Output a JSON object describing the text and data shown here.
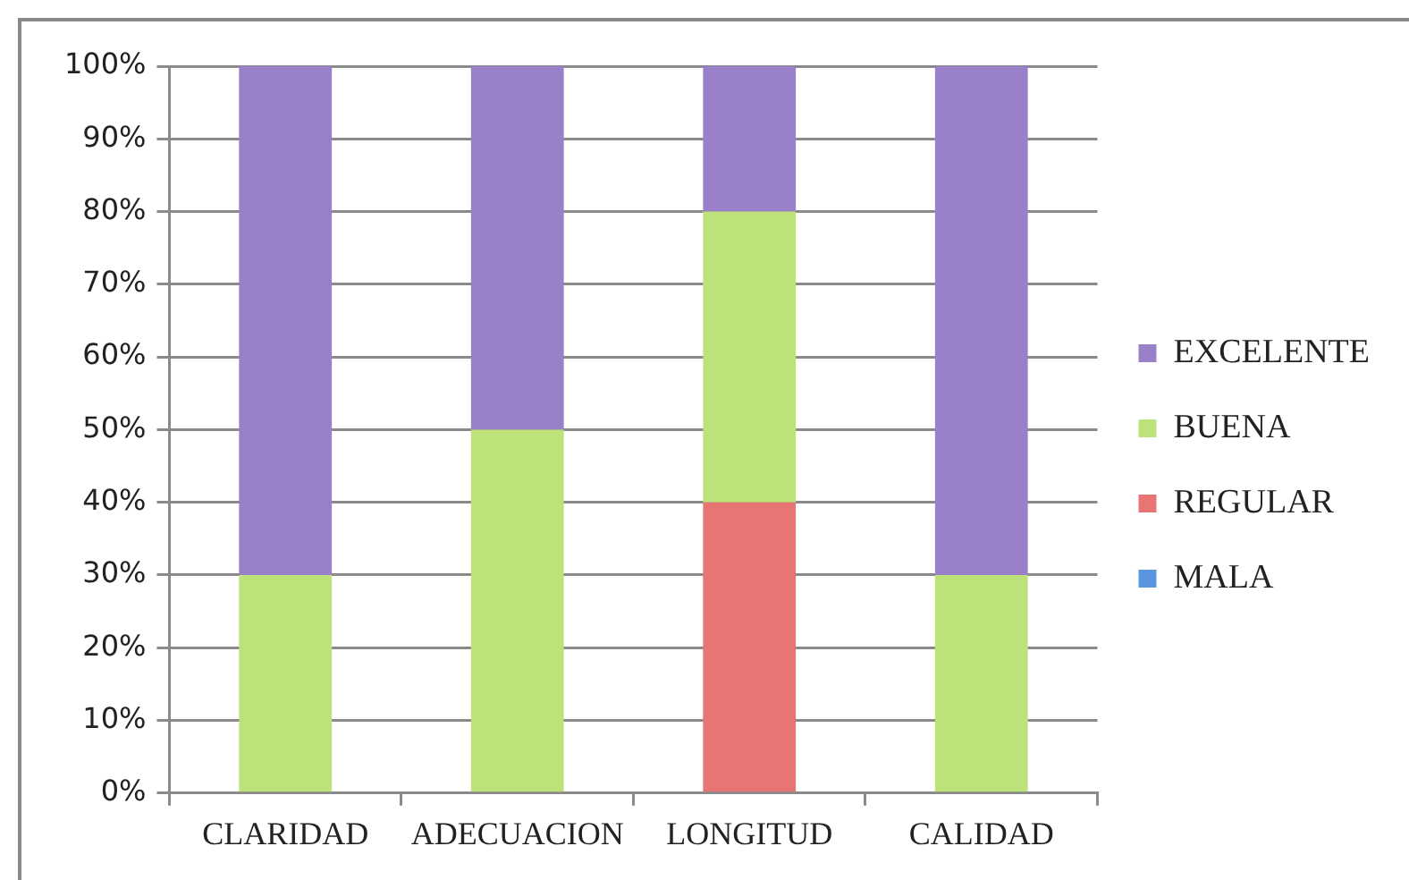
{
  "chart_data": {
    "type": "bar",
    "stacked": true,
    "categories": [
      "CLARIDAD",
      "ADECUACION",
      "LONGITUD",
      "CALIDAD"
    ],
    "series": [
      {
        "name": "MALA",
        "color": "#5a95e0",
        "values": [
          0,
          0,
          0,
          0
        ]
      },
      {
        "name": "REGULAR",
        "color": "#e87474",
        "values": [
          0,
          0,
          40,
          0
        ]
      },
      {
        "name": "BUENA",
        "color": "#bde27a",
        "values": [
          30,
          50,
          40,
          30
        ]
      },
      {
        "name": "EXCELENTE",
        "color": "#9a80c8",
        "values": [
          70,
          50,
          20,
          70
        ]
      }
    ],
    "ylim": [
      0,
      100
    ],
    "yticks": [
      {
        "value": 0,
        "label": "0%"
      },
      {
        "value": 10,
        "label": "10%"
      },
      {
        "value": 20,
        "label": "20%"
      },
      {
        "value": 30,
        "label": "30%"
      },
      {
        "value": 40,
        "label": "40%"
      },
      {
        "value": 50,
        "label": "50%"
      },
      {
        "value": 60,
        "label": "60%"
      },
      {
        "value": 70,
        "label": "70%"
      },
      {
        "value": 80,
        "label": "80%"
      },
      {
        "value": 90,
        "label": "90%"
      },
      {
        "value": 100,
        "label": "100%"
      }
    ],
    "grid": "y",
    "legend": "right"
  }
}
